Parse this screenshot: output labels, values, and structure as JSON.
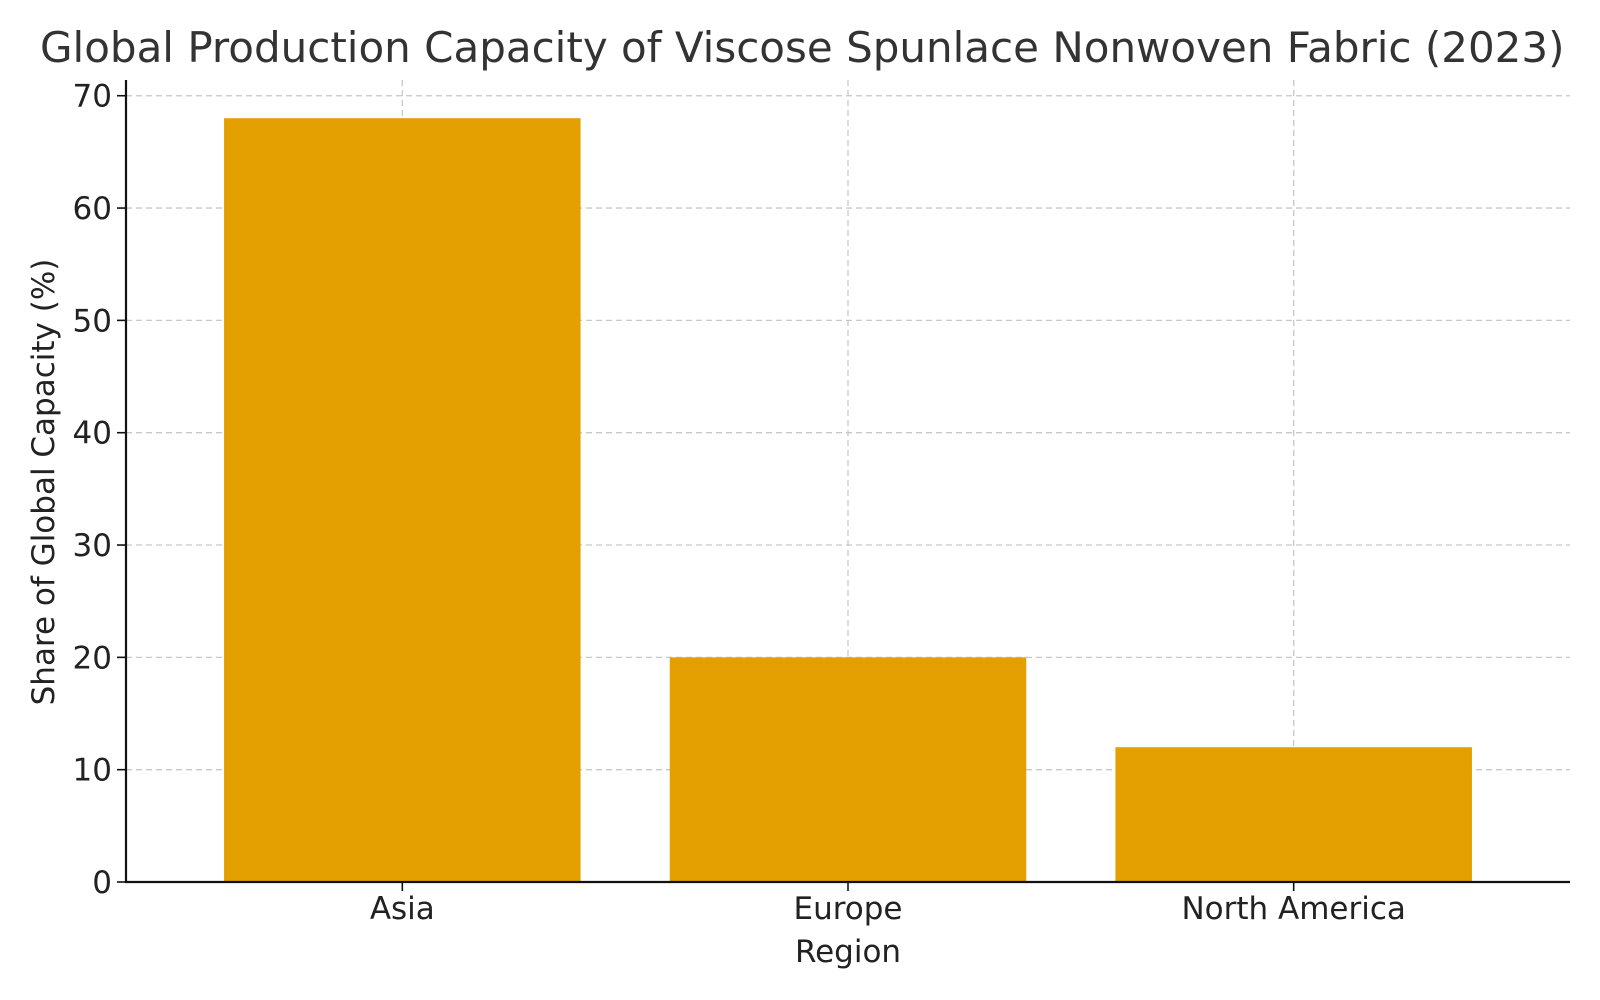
{
  "chart_data": {
    "type": "bar",
    "title": "Global Production Capacity of Viscose Spunlace Nonwoven Fabric (2023)",
    "xlabel": "Region",
    "ylabel": "Share of Global Capacity (%)",
    "categories": [
      "Asia",
      "Europe",
      "North America"
    ],
    "values": [
      68,
      20,
      12
    ],
    "ylim": [
      0,
      71.4
    ],
    "yticks": [
      0,
      10,
      20,
      30,
      40,
      50,
      60,
      70
    ],
    "grid": true,
    "bar_color": "#E3A000"
  }
}
